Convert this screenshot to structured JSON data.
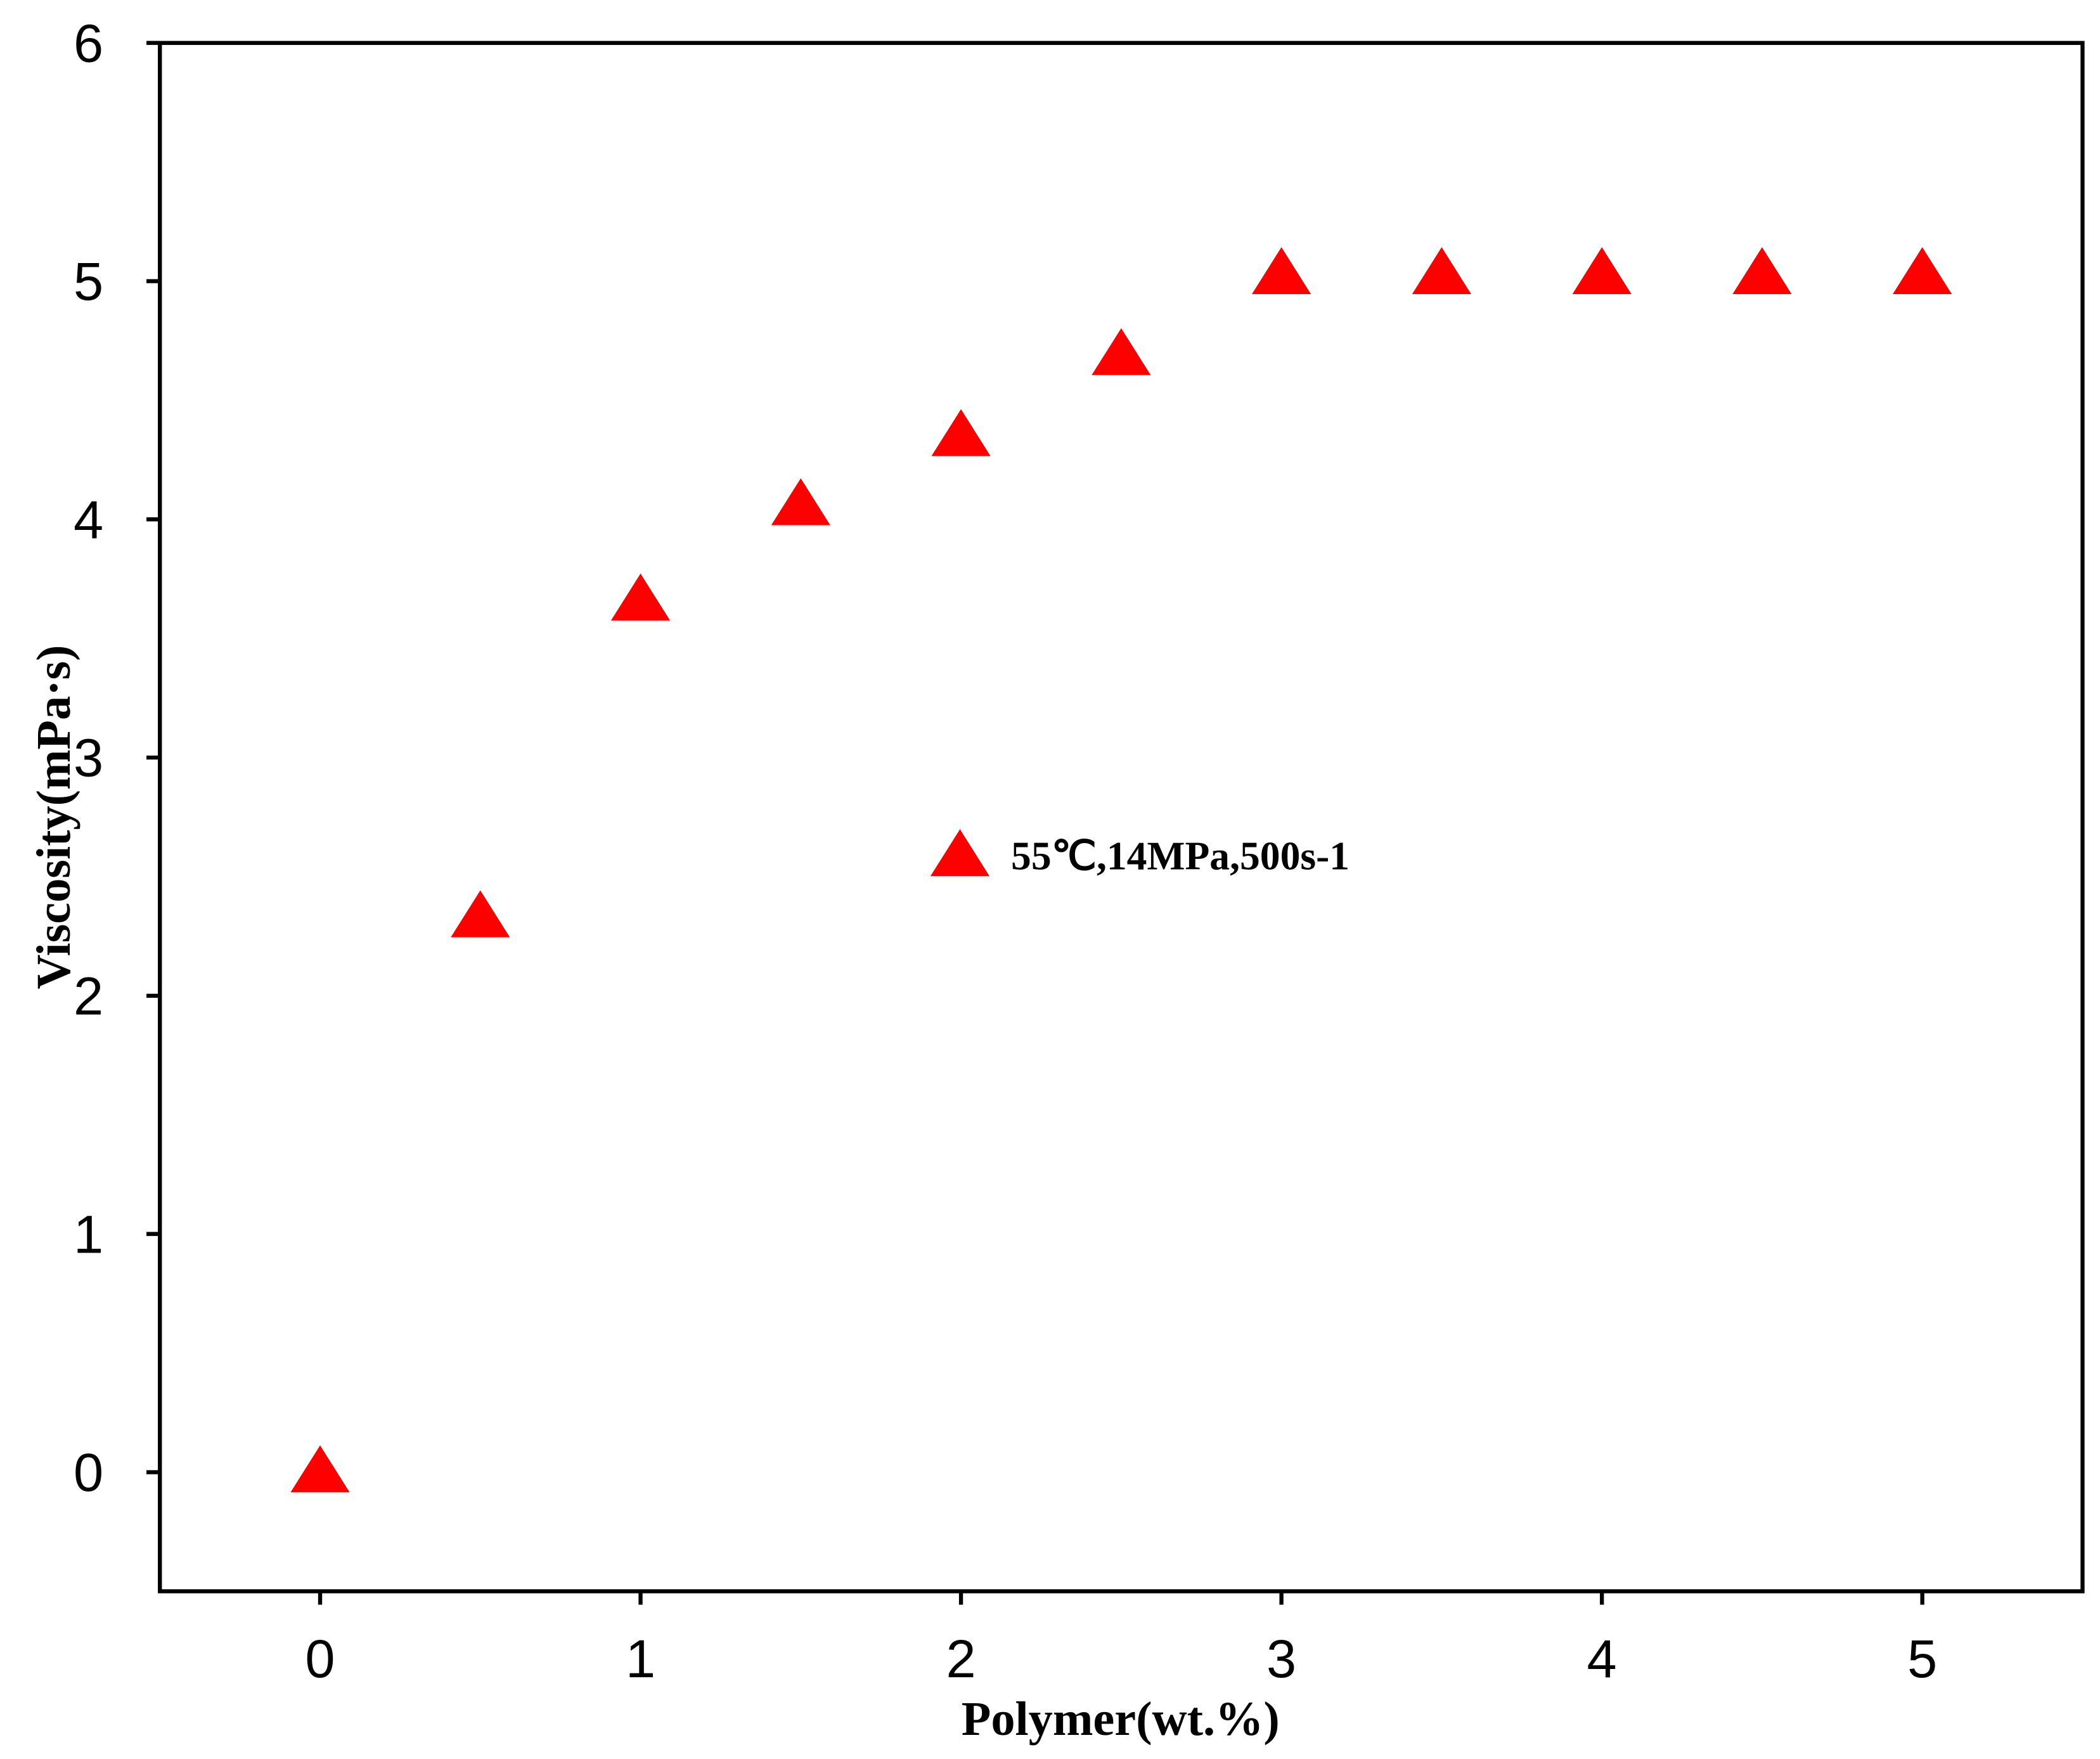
{
  "chart_data": {
    "type": "scatter",
    "x_label": "Polymer(wt.%)",
    "y_label": "Viscosity(mPa·s)",
    "xlim": [
      -0.5,
      5.5
    ],
    "xticks": [
      0,
      1,
      2,
      3,
      4,
      5
    ],
    "ylim": [
      -0.5,
      6
    ],
    "yticks": [
      0,
      1,
      2,
      3,
      4,
      5,
      6
    ],
    "legend": "center",
    "series": [
      {
        "name": "55℃,14MPa,500s-1",
        "color": "#ff0000",
        "marker": "triangle",
        "x": [
          0,
          0.5,
          1,
          1.5,
          2,
          2.5,
          3,
          3.5,
          4,
          4.5,
          5
        ],
        "values": [
          0,
          2.33,
          3.66,
          4.06,
          4.35,
          4.69,
          5.03,
          5.03,
          5.03,
          5.03,
          5.03
        ]
      }
    ]
  }
}
